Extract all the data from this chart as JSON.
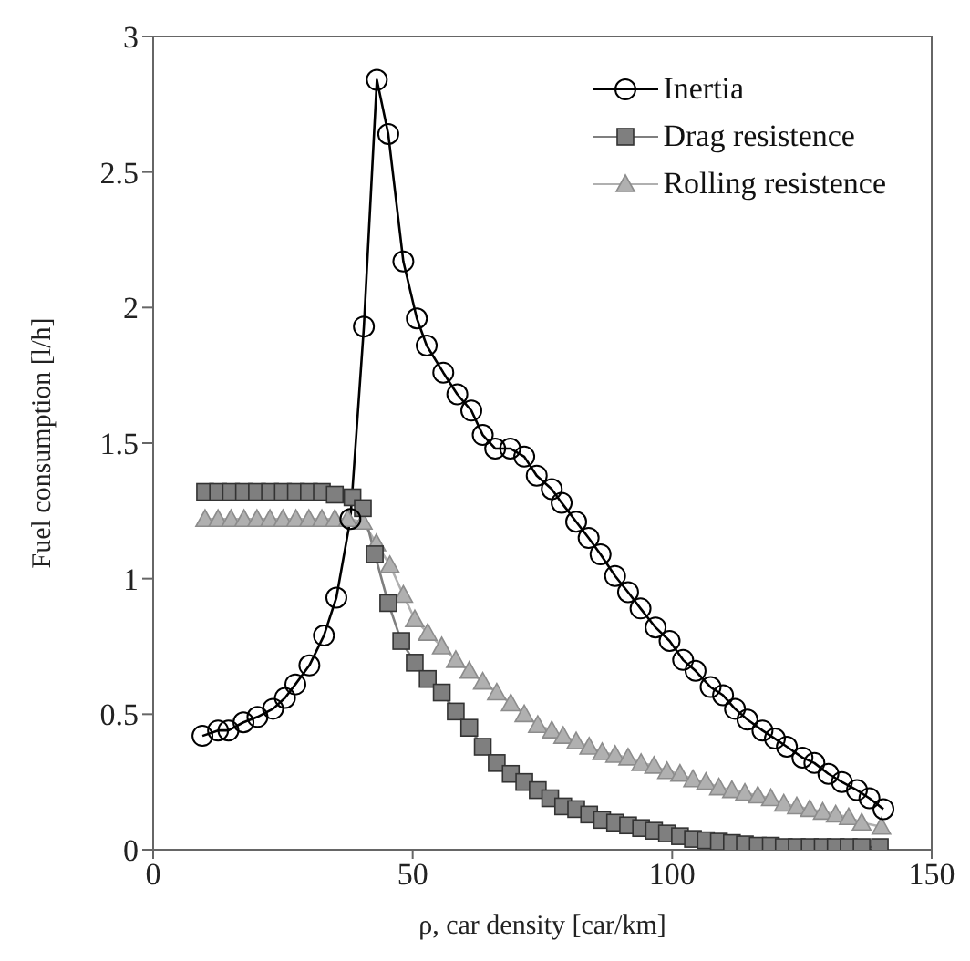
{
  "chart_data": {
    "type": "line",
    "xlabel": "ρ, car density [car/km]",
    "ylabel": "Fuel consumption [l/h]",
    "xlim": [
      0,
      150
    ],
    "xticks": [
      0,
      50,
      100,
      150
    ],
    "ylim": [
      0,
      3
    ],
    "yticks": [
      0,
      0.5,
      1,
      1.5,
      2,
      2.5,
      3
    ],
    "legend": "top right",
    "line_style": "solid",
    "series": [
      {
        "name": "Inertia",
        "color": "#000000",
        "marker": "circle",
        "x": [
          9.5,
          12.5,
          14.5,
          17.4,
          20.1,
          23.1,
          25.4,
          27.4,
          30.1,
          32.9,
          35.3,
          38,
          40.6,
          43.1,
          45.3,
          48.2,
          50.8,
          52.7,
          55.9,
          58.6,
          61.3,
          63.5,
          65.9,
          68.8,
          71.5,
          73.9,
          76.8,
          78.7,
          81.5,
          83.9,
          86.2,
          89,
          91.5,
          93.9,
          96.8,
          99.5,
          102.1,
          104.5,
          107.4,
          109.8,
          112.1,
          114.5,
          117.4,
          119.8,
          122.1,
          125.1,
          127.4,
          130.1,
          132.7,
          135.6,
          138,
          140.7
        ],
        "values": [
          0.42,
          0.44,
          0.44,
          0.47,
          0.49,
          0.52,
          0.56,
          0.61,
          0.68,
          0.79,
          0.93,
          1.22,
          1.93,
          2.84,
          2.64,
          2.17,
          1.96,
          1.86,
          1.76,
          1.68,
          1.62,
          1.53,
          1.48,
          1.48,
          1.45,
          1.38,
          1.33,
          1.28,
          1.21,
          1.15,
          1.09,
          1.01,
          0.95,
          0.89,
          0.82,
          0.77,
          0.7,
          0.66,
          0.6,
          0.57,
          0.52,
          0.48,
          0.44,
          0.41,
          0.38,
          0.34,
          0.32,
          0.28,
          0.25,
          0.22,
          0.19,
          0.15
        ]
      },
      {
        "name": "Drag resistence",
        "color": "#7f7f7f",
        "marker": "square",
        "x": [
          10,
          12.5,
          15,
          17.5,
          20,
          22.5,
          25,
          27.5,
          30,
          32.5,
          35,
          38.4,
          40.4,
          42.7,
          45.3,
          47.8,
          50.4,
          52.9,
          55.6,
          58.3,
          60.9,
          63.5,
          66.2,
          68.9,
          71.5,
          74.1,
          76.5,
          79,
          81.5,
          84,
          86.5,
          89,
          91.5,
          94,
          96.5,
          99,
          101.5,
          104,
          106.5,
          109,
          111.5,
          114,
          116.5,
          119,
          121.5,
          124,
          126.5,
          129,
          131.5,
          134,
          136.5,
          140
        ],
        "values": [
          1.32,
          1.32,
          1.32,
          1.32,
          1.32,
          1.32,
          1.32,
          1.32,
          1.32,
          1.32,
          1.31,
          1.3,
          1.26,
          1.09,
          0.91,
          0.77,
          0.69,
          0.63,
          0.58,
          0.51,
          0.45,
          0.38,
          0.32,
          0.28,
          0.25,
          0.22,
          0.19,
          0.16,
          0.15,
          0.13,
          0.11,
          0.1,
          0.09,
          0.08,
          0.07,
          0.06,
          0.05,
          0.04,
          0.035,
          0.03,
          0.025,
          0.02,
          0.015,
          0.015,
          0.01,
          0.01,
          0.01,
          0.01,
          0.01,
          0.01,
          0.01,
          0.01
        ]
      },
      {
        "name": "Rolling resistence",
        "color": "#b0b0b0",
        "marker": "triangle",
        "x": [
          10,
          12.5,
          15,
          17.5,
          20,
          22.5,
          25,
          27.5,
          30,
          32.5,
          35,
          37.5,
          40.4,
          43,
          45.6,
          48.2,
          50.4,
          52.9,
          55.6,
          58.3,
          60.9,
          63.5,
          66.2,
          68.9,
          71.5,
          74.1,
          76.8,
          79,
          81.5,
          84,
          86.5,
          89,
          91.5,
          94,
          96.5,
          99,
          101.5,
          104,
          106.5,
          109,
          111.5,
          114,
          116.5,
          119,
          121.5,
          124,
          126.5,
          129,
          131.5,
          134,
          136.5,
          140.3
        ],
        "values": [
          1.22,
          1.22,
          1.22,
          1.22,
          1.22,
          1.22,
          1.22,
          1.22,
          1.22,
          1.22,
          1.22,
          1.22,
          1.21,
          1.13,
          1.05,
          0.94,
          0.85,
          0.8,
          0.75,
          0.7,
          0.66,
          0.62,
          0.58,
          0.54,
          0.5,
          0.46,
          0.44,
          0.42,
          0.4,
          0.38,
          0.36,
          0.35,
          0.34,
          0.32,
          0.31,
          0.29,
          0.28,
          0.26,
          0.25,
          0.23,
          0.22,
          0.21,
          0.2,
          0.19,
          0.17,
          0.16,
          0.15,
          0.14,
          0.13,
          0.12,
          0.1,
          0.085
        ]
      }
    ]
  }
}
